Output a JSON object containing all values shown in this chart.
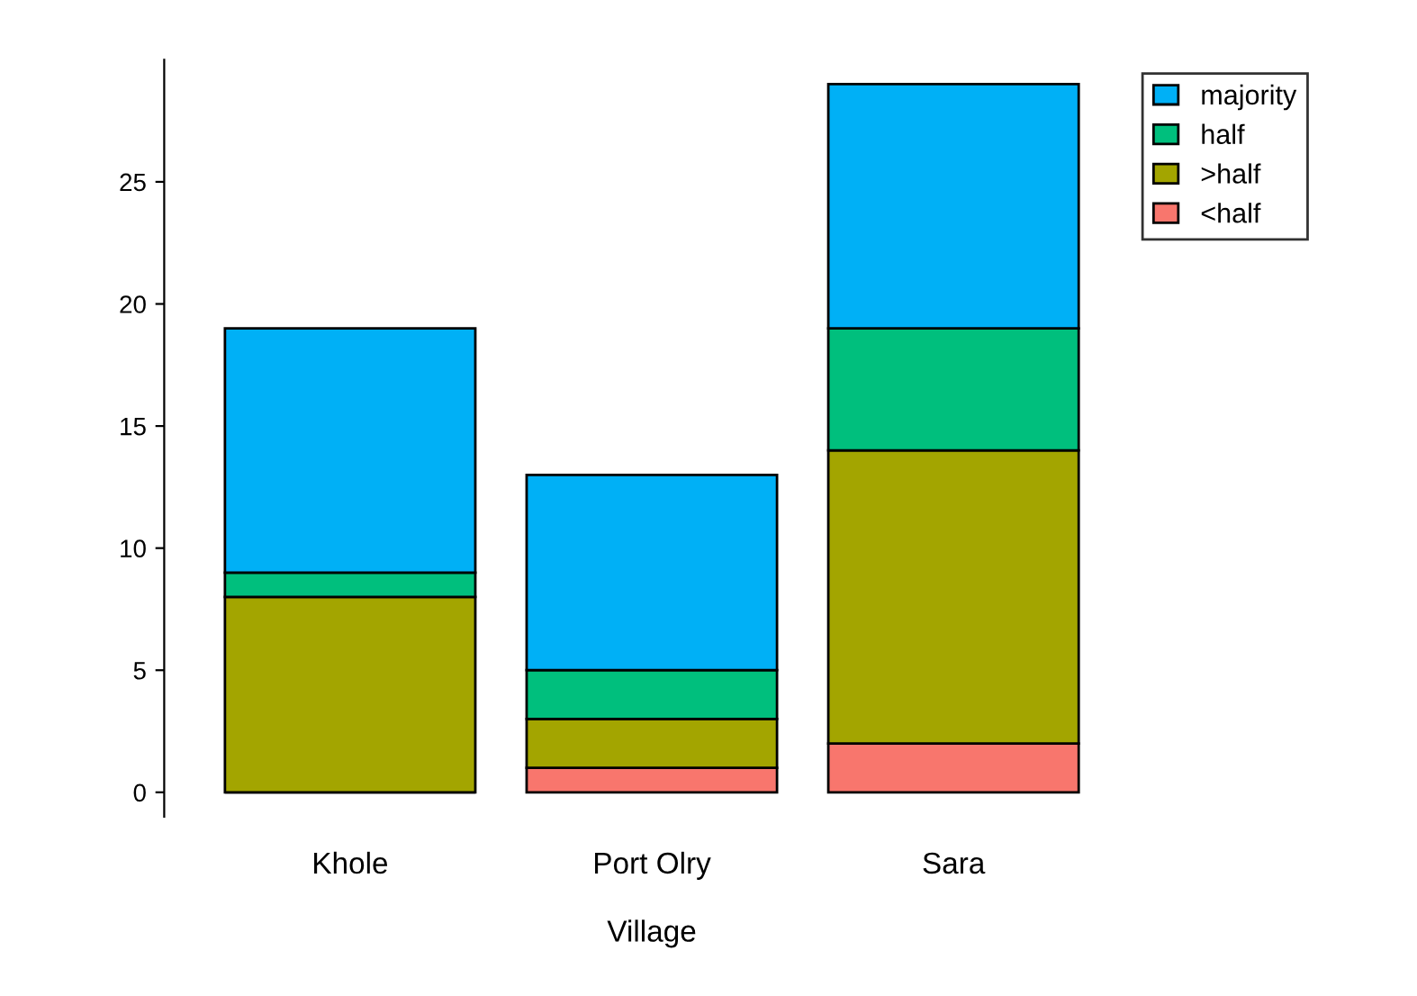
{
  "chart_data": {
    "type": "bar",
    "stacked": true,
    "xlabel": "Village",
    "categories": [
      "Khole",
      "Port Olry",
      "Sara"
    ],
    "series": [
      {
        "name": "<half",
        "color": "#f8766d",
        "values": [
          0,
          1,
          2
        ]
      },
      {
        "name": ">half",
        "color": "#a3a500",
        "values": [
          8,
          2,
          12
        ]
      },
      {
        "name": "half",
        "color": "#00bf7d",
        "values": [
          1,
          2,
          5
        ]
      },
      {
        "name": "majority",
        "color": "#00b0f6",
        "values": [
          10,
          8,
          10
        ]
      }
    ],
    "ylim": [
      -1,
      30
    ],
    "yticks": [
      0,
      5,
      10,
      15,
      20,
      25
    ],
    "grid": false,
    "legend": "top right"
  }
}
